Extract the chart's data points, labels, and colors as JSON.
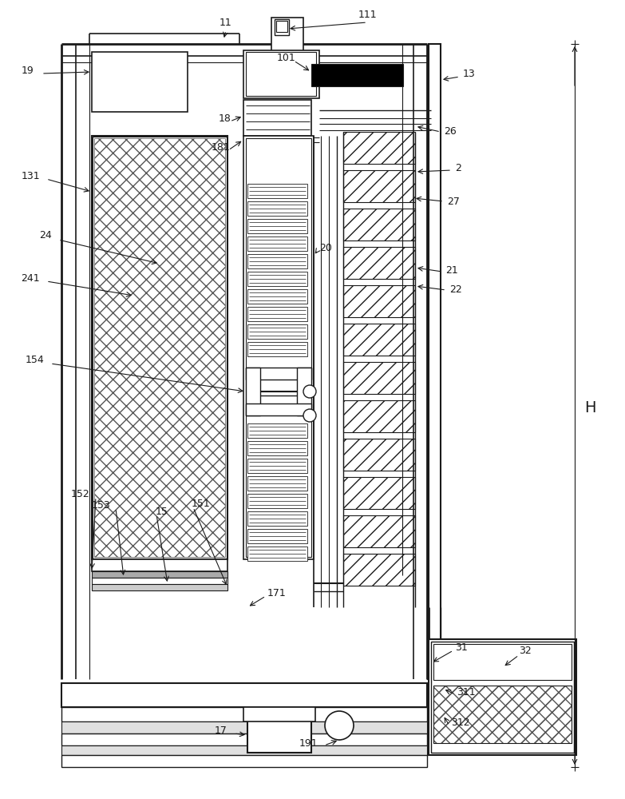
{
  "bg_color": "#ffffff",
  "lc": "#1a1a1a",
  "fig_width": 7.83,
  "fig_height": 10.0,
  "dpi": 100
}
